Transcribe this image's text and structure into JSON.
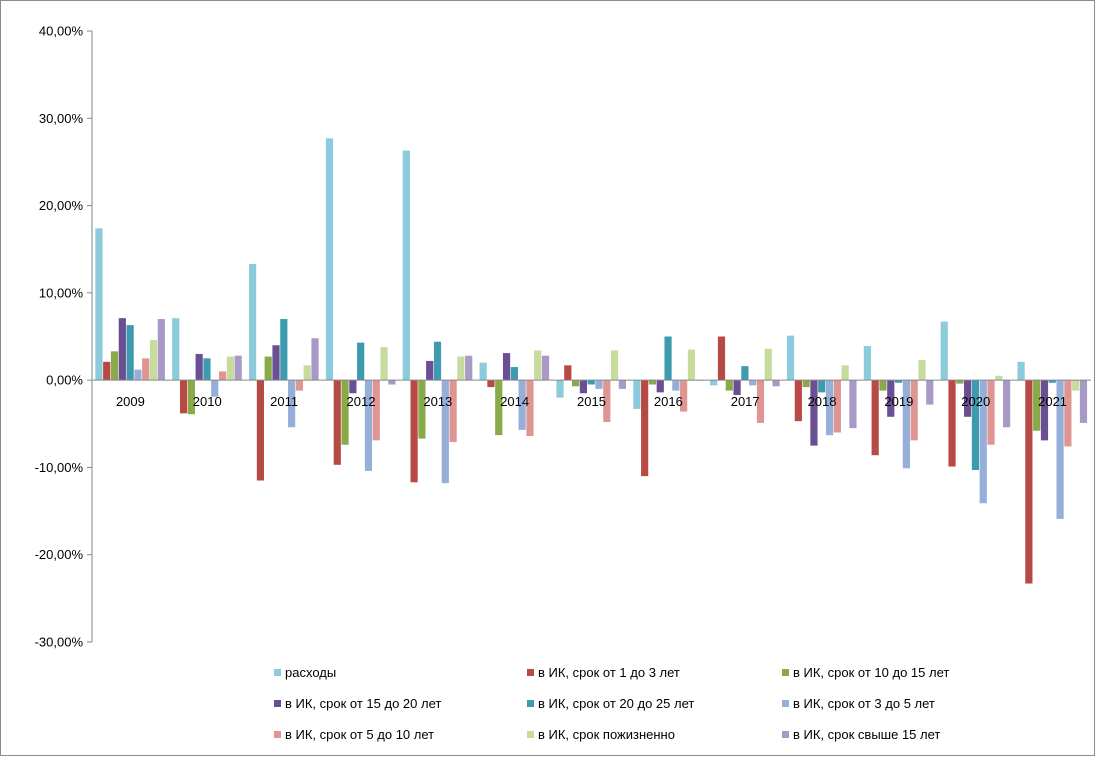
{
  "chart_data": {
    "type": "bar",
    "categories": [
      "2009",
      "2010",
      "2011",
      "2012",
      "2013",
      "2014",
      "2015",
      "2016",
      "2017",
      "2018",
      "2019",
      "2020",
      "2021"
    ],
    "series": [
      {
        "name": "расходы",
        "color": "#8ccbdb",
        "values": [
          17.4,
          7.1,
          13.3,
          27.7,
          26.3,
          2.0,
          -2.0,
          -3.3,
          -0.6,
          5.1,
          3.9,
          6.7,
          2.1
        ]
      },
      {
        "name": "в ИК, срок от 1 до 3 лет",
        "color": "#b84a46",
        "values": [
          2.1,
          -3.8,
          -11.5,
          -9.7,
          -11.7,
          -0.8,
          1.7,
          -11.0,
          5.0,
          -4.7,
          -8.6,
          -9.9,
          -23.3
        ]
      },
      {
        "name": "в ИК, срок от 10 до 15 лет",
        "color": "#8aaa4a",
        "values": [
          3.3,
          -3.9,
          2.7,
          -7.4,
          -6.7,
          -6.3,
          -0.7,
          -0.5,
          -1.2,
          -0.8,
          -1.2,
          -0.4,
          -5.8
        ]
      },
      {
        "name": "в ИК, срок от 15 до 20 лет",
        "color": "#6a4f93",
        "values": [
          7.1,
          3.0,
          4.0,
          -1.5,
          2.2,
          3.1,
          -1.5,
          -1.4,
          -1.7,
          -7.5,
          -4.2,
          -4.2,
          -6.9
        ]
      },
      {
        "name": "в ИК, срок от 20 до 25 лет",
        "color": "#3e9aaf",
        "values": [
          6.3,
          2.5,
          7.0,
          4.3,
          4.4,
          1.5,
          -0.5,
          5.0,
          1.6,
          -1.4,
          -0.3,
          -10.3,
          -0.3
        ]
      },
      {
        "name": "в ИК, срок от 3 до 5 лет",
        "color": "#95afd9",
        "values": [
          1.2,
          -1.9,
          -5.4,
          -10.4,
          -11.8,
          -5.7,
          -1.0,
          -1.2,
          -0.6,
          -6.3,
          -10.1,
          -14.1,
          -15.9
        ]
      },
      {
        "name": "в ИК, срок от 5 до 10 лет",
        "color": "#df9693",
        "values": [
          2.5,
          1.0,
          -1.2,
          -6.9,
          -7.1,
          -6.4,
          -4.8,
          -3.6,
          -4.9,
          -6.0,
          -6.9,
          -7.4,
          -7.6
        ]
      },
      {
        "name": "в ИК, срок пожизненно",
        "color": "#c6dc9d",
        "values": [
          4.6,
          2.7,
          1.7,
          3.8,
          2.7,
          3.4,
          3.4,
          3.5,
          3.6,
          1.7,
          2.3,
          0.5,
          -1.2
        ]
      },
      {
        "name": "в ИК, срок свыше 15 лет",
        "color": "#a899c7",
        "values": [
          7.0,
          2.8,
          4.8,
          -0.5,
          2.8,
          2.8,
          -1.0,
          0.0,
          -0.7,
          -5.5,
          -2.8,
          -5.4,
          -4.9
        ]
      }
    ],
    "y_ticks": [
      "40,00%",
      "30,00%",
      "20,00%",
      "10,00%",
      "0,00%",
      "-10,00%",
      "-20,00%",
      "-30,00%"
    ],
    "ylim": [
      -30,
      40
    ],
    "title": "",
    "xlabel": "",
    "ylabel": "",
    "grid": false,
    "legend_position": "bottom"
  }
}
